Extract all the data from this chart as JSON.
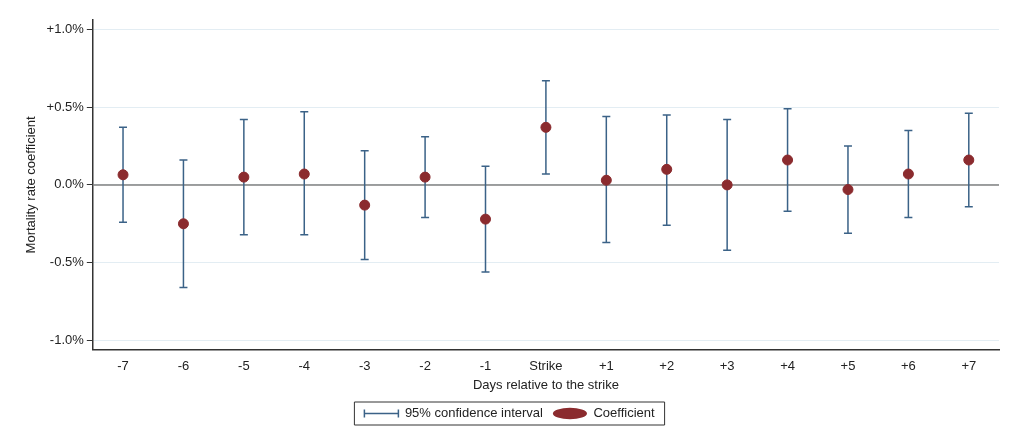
{
  "chart_data": {
    "type": "scatter",
    "xlabel": "Days relative to the strike",
    "ylabel": "Mortality rate coefficient",
    "categories": [
      "-7",
      "-6",
      "-5",
      "-4",
      "-3",
      "-2",
      "-1",
      "Strike",
      "+1",
      "+2",
      "+3",
      "+4",
      "+5",
      "+6",
      "+7"
    ],
    "series": [
      {
        "name": "Coefficient",
        "color": "#8b2b2e",
        "marker": "circle",
        "values": [
          0.065,
          -0.25,
          0.05,
          0.07,
          -0.13,
          0.05,
          -0.22,
          0.37,
          0.03,
          0.1,
          0.0,
          0.16,
          -0.03,
          0.07,
          0.16
        ],
        "errors": [
          [
            -0.24,
            0.37
          ],
          [
            -0.66,
            0.16
          ],
          [
            -0.32,
            0.42
          ],
          [
            -0.32,
            0.47
          ],
          [
            -0.48,
            0.22
          ],
          [
            -0.21,
            0.31
          ],
          [
            -0.56,
            0.12
          ],
          [
            0.07,
            0.67
          ],
          [
            -0.37,
            0.44
          ],
          [
            -0.26,
            0.45
          ],
          [
            -0.42,
            0.42
          ],
          [
            -0.17,
            0.49
          ],
          [
            -0.31,
            0.25
          ],
          [
            -0.21,
            0.35
          ],
          [
            -0.14,
            0.46
          ]
        ]
      }
    ],
    "annotations": [
      "95% confidence interval"
    ],
    "ylim": [
      -1.06,
      1.06
    ],
    "yticks": [
      {
        "value": -1,
        "label": "-1.0%"
      },
      {
        "value": -0.5,
        "label": "-0.5%"
      },
      {
        "value": 0,
        "label": "0.0%"
      },
      {
        "value": 0.5,
        "label": "+0.5%"
      },
      {
        "value": 1,
        "label": "+1.0%"
      }
    ],
    "ref_lines": [
      {
        "axis": "y",
        "value": 0,
        "color": "#808080"
      }
    ],
    "grid": "y",
    "legend": "bottom"
  }
}
